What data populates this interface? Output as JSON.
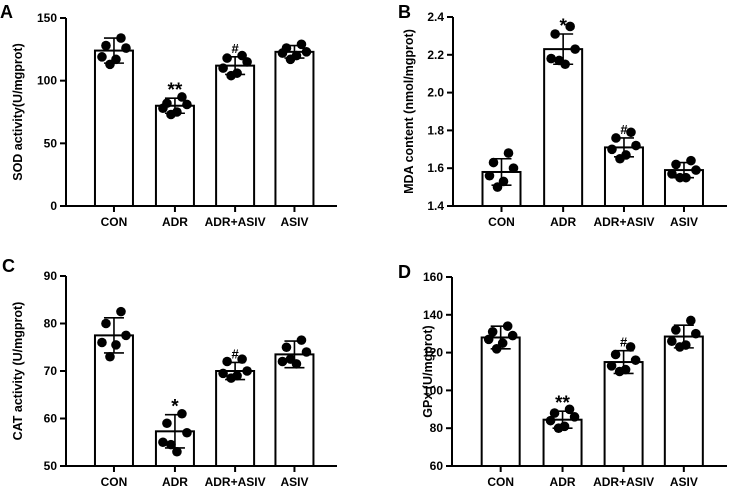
{
  "chart_data": [
    {
      "panel": "A",
      "type": "bar",
      "ylabel": "SOD activity(U/mgprot)",
      "ylim": [
        0,
        150
      ],
      "yticks": [
        0,
        50,
        100,
        150
      ],
      "categories": [
        "CON",
        "ADR",
        "ADR+ASIV",
        "ASIV"
      ],
      "means": [
        124,
        80,
        112,
        123
      ],
      "sd": [
        10,
        6,
        7,
        5
      ],
      "points": [
        [
          134,
          128,
          126,
          119,
          117,
          113
        ],
        [
          87,
          82,
          81,
          78,
          75,
          73
        ],
        [
          120,
          118,
          115,
          110,
          106,
          104
        ],
        [
          129,
          126,
          123,
          122,
          120,
          117
        ]
      ],
      "significance": [
        "",
        "**",
        "#",
        ""
      ]
    },
    {
      "panel": "B",
      "type": "bar",
      "ylabel": "MDA content (nmol/mgprot)",
      "ylim": [
        1.4,
        2.4
      ],
      "yticks": [
        1.4,
        1.6,
        1.8,
        2.0,
        2.2,
        2.4
      ],
      "ytick_labels": [
        "1.4",
        "1.6",
        "1.8",
        "2.0",
        "2.2",
        "2.4"
      ],
      "categories": [
        "CON",
        "ADR",
        "ADR+ASIV",
        "ASIV"
      ],
      "means": [
        1.58,
        2.23,
        1.71,
        1.59
      ],
      "sd": [
        0.07,
        0.08,
        0.05,
        0.04
      ],
      "points": [
        [
          1.68,
          1.63,
          1.6,
          1.56,
          1.53,
          1.5
        ],
        [
          2.35,
          2.31,
          2.23,
          2.18,
          2.15,
          2.17
        ],
        [
          1.79,
          1.76,
          1.72,
          1.7,
          1.67,
          1.65
        ],
        [
          1.64,
          1.62,
          1.59,
          1.57,
          1.55,
          1.55
        ]
      ],
      "significance": [
        "",
        "*",
        "#",
        ""
      ]
    },
    {
      "panel": "C",
      "type": "bar",
      "ylabel": "CAT activity (U/mgprot)",
      "ylim": [
        50,
        90
      ],
      "yticks": [
        50,
        60,
        70,
        80,
        90
      ],
      "categories": [
        "CON",
        "ADR",
        "ADR+ASIV",
        "ASIV"
      ],
      "means": [
        77.5,
        57.3,
        70.0,
        73.5
      ],
      "sd": [
        3.7,
        3.5,
        1.8,
        2.8
      ],
      "points": [
        [
          82.5,
          80.0,
          77.5,
          76.0,
          75.5,
          73.0
        ],
        [
          61.0,
          59.0,
          57.0,
          55.0,
          53.0,
          54.5
        ],
        [
          72.5,
          72.0,
          70.0,
          69.5,
          69.0,
          68.5
        ],
        [
          76.5,
          75.0,
          74.0,
          72.0,
          71.5,
          72.5
        ]
      ],
      "significance": [
        "",
        "*",
        "#",
        ""
      ]
    },
    {
      "panel": "D",
      "type": "bar",
      "ylabel": "GPx (U/mgprot)",
      "ylim": [
        60,
        160
      ],
      "yticks": [
        60,
        80,
        100,
        120,
        140,
        160
      ],
      "categories": [
        "CON",
        "ADR",
        "ADR+ASIV",
        "ASIV"
      ],
      "means": [
        128,
        84.5,
        115,
        128.5
      ],
      "sd": [
        6,
        4.5,
        6,
        6
      ],
      "points": [
        [
          134,
          131,
          129,
          127,
          125,
          122
        ],
        [
          90,
          88,
          86,
          84,
          81,
          80
        ],
        [
          123,
          119,
          116,
          113,
          111,
          110
        ],
        [
          137,
          132,
          130,
          126,
          124,
          123
        ]
      ],
      "significance": [
        "",
        "**",
        "#",
        ""
      ]
    }
  ]
}
